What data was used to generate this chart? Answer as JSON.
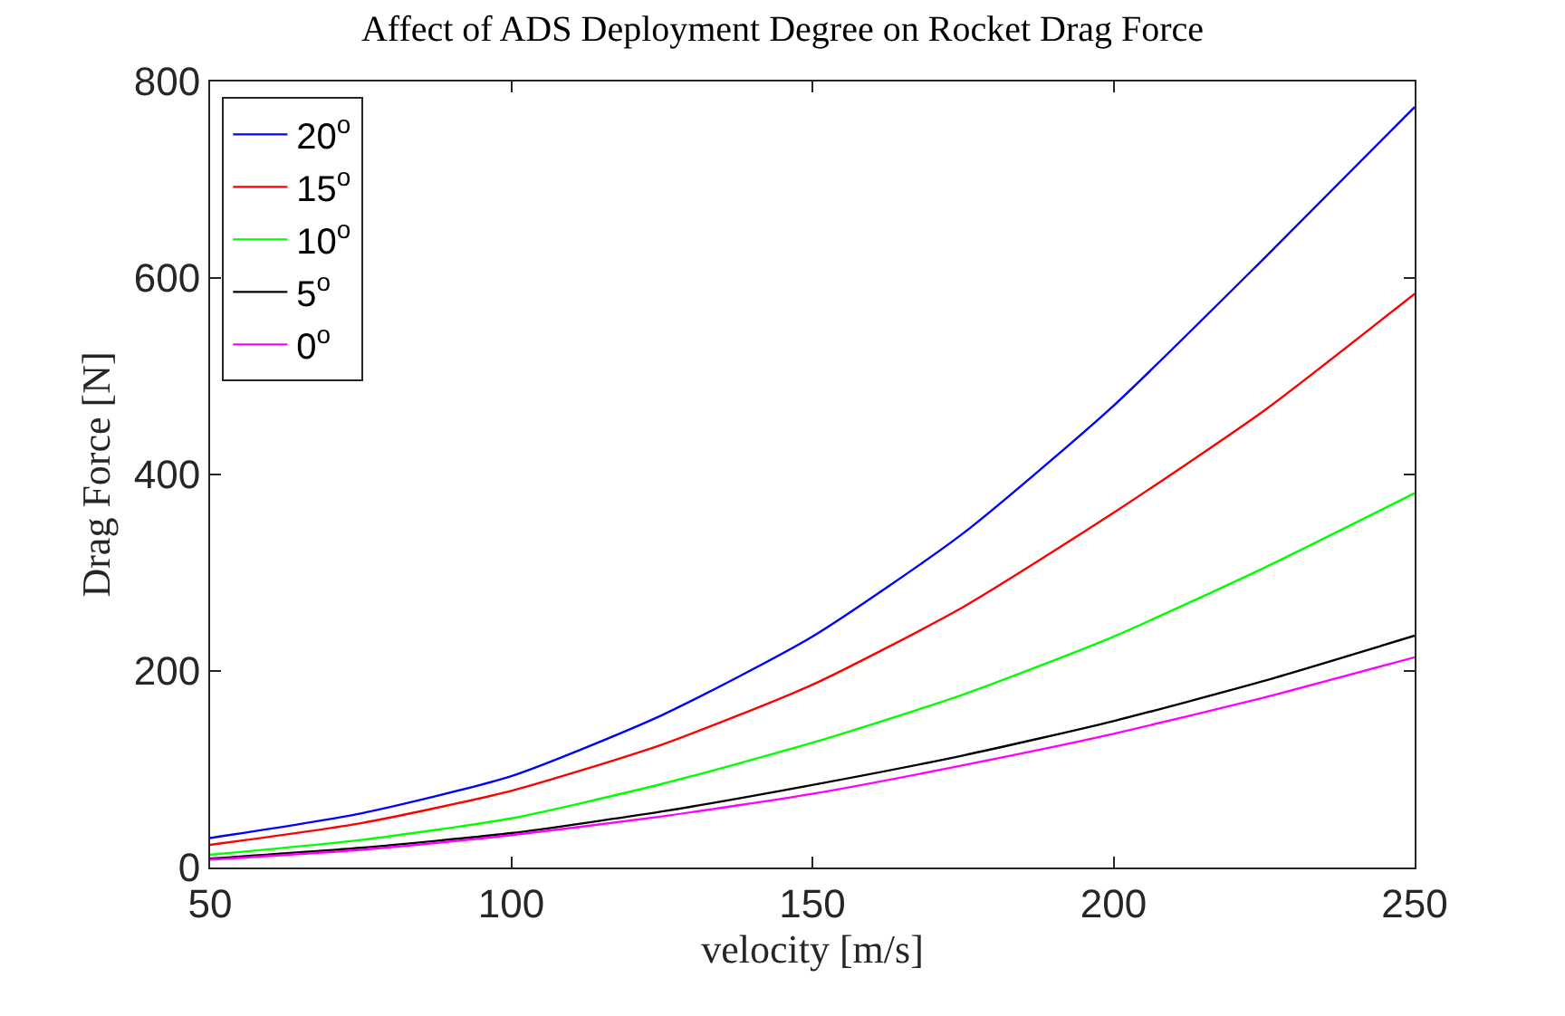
{
  "chart_data": {
    "type": "line",
    "title": "Affect of ADS Deployment Degree on Rocket Drag Force",
    "xlabel": "velocity [m/s]",
    "ylabel": "Drag Force [N]",
    "x": [
      50,
      75,
      100,
      125,
      150,
      175,
      200,
      225,
      250
    ],
    "series": [
      {
        "name": "20$^{o}$",
        "color": "#0000ff",
        "values": [
          30,
          55,
          93,
          155,
          235,
          340,
          470,
          620,
          774
        ]
      },
      {
        "name": "15$^{o}$",
        "color": "#ff0000",
        "values": [
          23,
          45,
          78,
          125,
          186,
          265,
          361,
          465,
          584
        ]
      },
      {
        "name": "10$^{o}$",
        "color": "#00ff00",
        "values": [
          13,
          28,
          50,
          85,
          127,
          176,
          235,
          305,
          381
        ]
      },
      {
        "name": "5$^{o}$",
        "color": "#000000",
        "values": [
          9,
          20,
          35,
          57,
          84,
          114,
          149,
          190,
          236
        ]
      },
      {
        "name": "0$^{o}$",
        "color": "#ff00ff",
        "values": [
          8,
          18,
          33,
          52,
          75,
          104,
          136,
          173,
          214
        ]
      }
    ],
    "xlim": [
      50,
      250
    ],
    "xticks": [
      50,
      100,
      150,
      200,
      250
    ],
    "ylim": [
      0,
      800
    ],
    "yticks": [
      0,
      200,
      400,
      600,
      800
    ],
    "legend": "top left",
    "marker": "none",
    "line_style": "solid"
  }
}
